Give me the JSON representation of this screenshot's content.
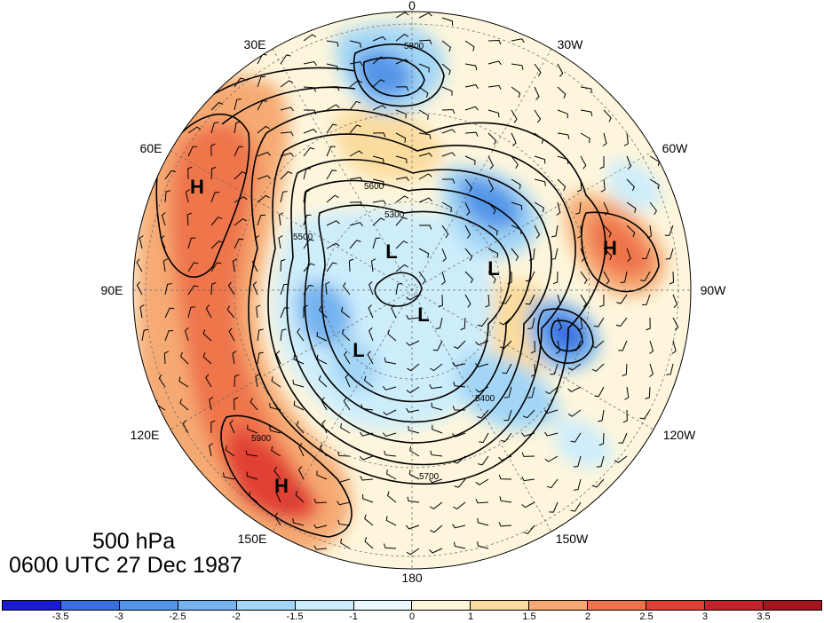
{
  "figure": {
    "level": "500 hPa",
    "datetime": "0600 UTC 27 Dec 1987"
  },
  "longitude_labels": [
    "0",
    "30W",
    "60W",
    "90W",
    "120W",
    "150W",
    "180",
    "150E",
    "120E",
    "90E",
    "60E",
    "30E"
  ],
  "contour_labels": [
    "5300",
    "5400",
    "5500",
    "5600",
    "5700",
    "5800",
    "5900"
  ],
  "pressure_centers": [
    {
      "type": "H",
      "region": "west-Siberia"
    },
    {
      "type": "H",
      "region": "north-Atlantic"
    },
    {
      "type": "H",
      "region": "north-Pacific"
    },
    {
      "type": "L",
      "region": "Arctic-near-pole"
    },
    {
      "type": "L",
      "region": "Kara-sea"
    },
    {
      "type": "L",
      "region": "Canada"
    },
    {
      "type": "L",
      "region": "east-Siberia"
    }
  ],
  "colorbar": {
    "levels": [
      "-3.5",
      "-3",
      "-2.5",
      "-2",
      "-1.5",
      "-1",
      "0",
      "1",
      "1.5",
      "2",
      "2.5",
      "3",
      "3.5"
    ],
    "colors": [
      "#1a1ad1",
      "#3a6fe0",
      "#5595e8",
      "#75b3ef",
      "#a3d6f6",
      "#cdedfb",
      "#ebf8fd",
      "#fdf6dc",
      "#fbdc9f",
      "#f6aa73",
      "#ef744c",
      "#e14036",
      "#c5232b",
      "#a3141e"
    ]
  }
}
